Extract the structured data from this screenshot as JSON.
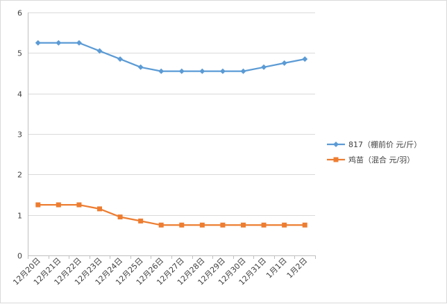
{
  "chart_data": {
    "type": "line",
    "categories": [
      "12月20日",
      "12月21日",
      "12月22日",
      "12月23日",
      "12月24日",
      "12月25日",
      "12月26日",
      "12月27日",
      "12月28日",
      "12月29日",
      "12月30日",
      "12月31日",
      "1月1日",
      "1月2日"
    ],
    "ylim": [
      0,
      6
    ],
    "yticks": [
      0,
      1,
      2,
      3,
      4,
      5,
      6
    ],
    "grid": true,
    "legend_position": "right",
    "series": [
      {
        "name": "817（棚前价 元/斤）",
        "color": "#5b9bd5",
        "marker": "diamond",
        "values": [
          5.25,
          5.25,
          5.25,
          5.05,
          4.85,
          4.65,
          4.55,
          4.55,
          4.55,
          4.55,
          4.55,
          4.65,
          4.75,
          4.85
        ]
      },
      {
        "name": "鸡苗（混合 元/羽）",
        "color": "#ed7d31",
        "marker": "square",
        "values": [
          1.25,
          1.25,
          1.25,
          1.15,
          0.95,
          0.85,
          0.75,
          0.75,
          0.75,
          0.75,
          0.75,
          0.75,
          0.75,
          0.75
        ]
      }
    ]
  }
}
